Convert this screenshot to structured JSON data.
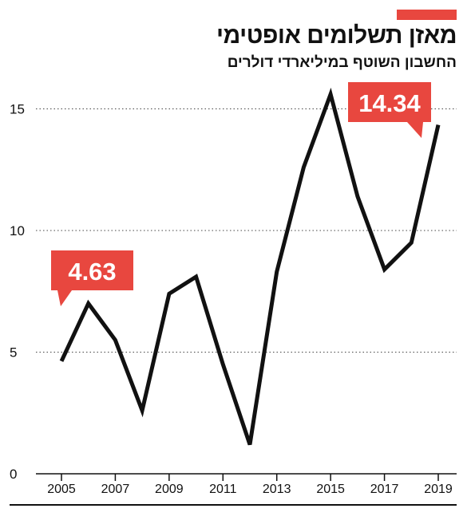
{
  "header": {
    "title": "מאזן תשלומים אופטימי",
    "subtitle": "החשבון השוטף במיליארדי דולרים",
    "accent_color": "#e8473f"
  },
  "chart_data": {
    "type": "line",
    "title": "מאזן תשלומים אופטימי",
    "subtitle": "החשבון השוטף במיליארדי דולרים",
    "x": [
      2005,
      2006,
      2007,
      2008,
      2009,
      2010,
      2011,
      2012,
      2013,
      2014,
      2015,
      2016,
      2017,
      2018,
      2019
    ],
    "series": [
      {
        "values": [
          4.63,
          7.0,
          5.5,
          2.6,
          7.4,
          8.1,
          4.5,
          1.2,
          8.3,
          12.6,
          15.6,
          11.4,
          8.4,
          9.5,
          14.34
        ]
      }
    ],
    "x_ticks": [
      "2005",
      "2007",
      "2009",
      "2011",
      "2013",
      "2015",
      "2017",
      "2019"
    ],
    "y_ticks": [
      "0",
      "5",
      "10",
      "15"
    ],
    "ylim": [
      0,
      16
    ],
    "xlim": [
      2005,
      2019
    ],
    "grid": "horizontal dotted",
    "line_color": "#111111",
    "callouts": [
      {
        "year": 2005,
        "label": "4.63",
        "color": "#e8473f"
      },
      {
        "year": 2019,
        "label": "14.34",
        "color": "#e8473f"
      }
    ]
  }
}
